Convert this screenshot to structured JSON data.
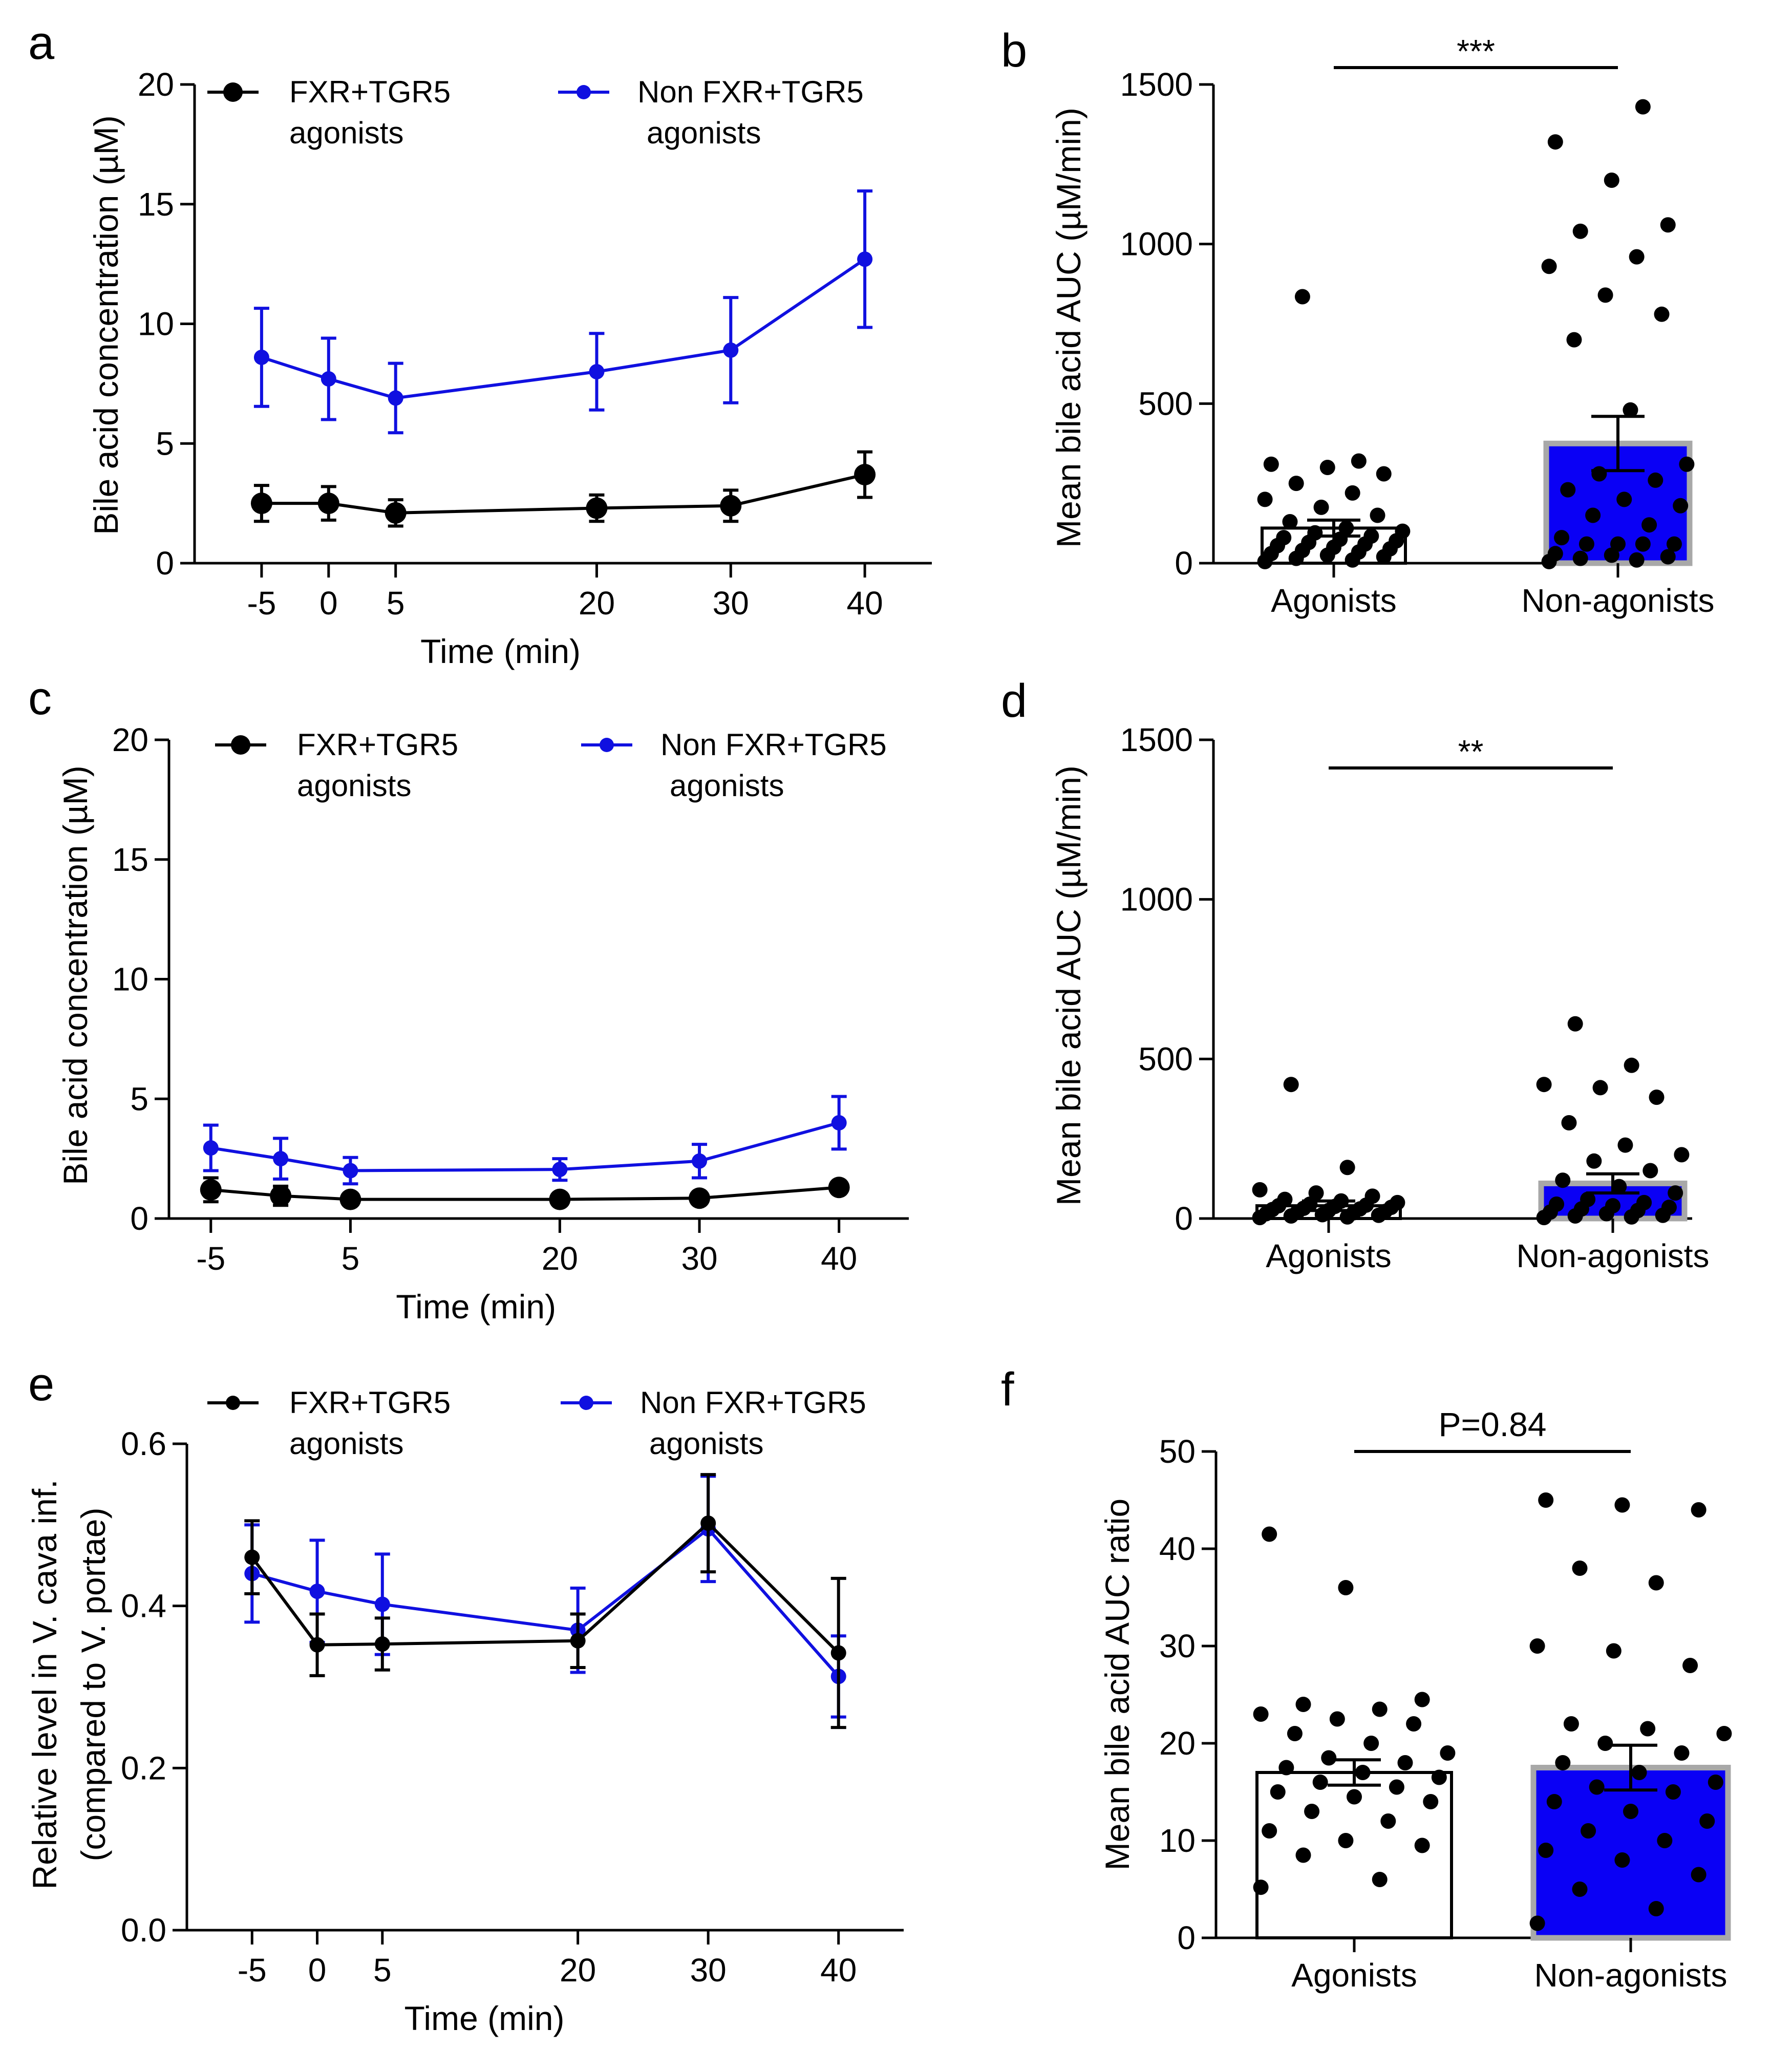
{
  "colors": {
    "agonist": "#000000",
    "non_agonist": "#1010e0",
    "bar_fill_non": "#0a00f5",
    "bar_edge_non": "#a8a8a8"
  },
  "chart_data": [
    {
      "panel": "a",
      "type": "line",
      "xlabel": "Time (min)",
      "ylabel": "Bile acid concentration (µM)",
      "x": [
        -5,
        0,
        5,
        20,
        30,
        40
      ],
      "xtick_labels": [
        "-5",
        "0",
        "5",
        "20",
        "30",
        "40"
      ],
      "ylim": [
        0,
        20
      ],
      "yticks": [
        0,
        5,
        10,
        15,
        20
      ],
      "ytick_labels": [
        "0",
        "5",
        "10",
        "15",
        "20"
      ],
      "legend": [
        {
          "line1": "FXR+TGR5",
          "line2": "agonists"
        },
        {
          "line1": "Non FXR+TGR5",
          "line2": "agonists"
        }
      ],
      "series": [
        {
          "name": "FXR+TGR5 agonists",
          "color": "#000000",
          "values": [
            2.5,
            2.5,
            2.1,
            2.3,
            2.4,
            3.7
          ],
          "errors": [
            0.75,
            0.7,
            0.55,
            0.55,
            0.65,
            0.95
          ]
        },
        {
          "name": "Non FXR+TGR5 agonists",
          "color": "#1010e0",
          "values": [
            8.6,
            7.7,
            6.9,
            8.0,
            8.9,
            12.7
          ],
          "errors": [
            2.05,
            1.7,
            1.45,
            1.6,
            2.2,
            2.85
          ]
        }
      ]
    },
    {
      "panel": "b",
      "type": "bar",
      "ylabel": "Mean bile acid AUC (µM/min)",
      "categories": [
        "Agonists",
        "Non-agonists"
      ],
      "values": [
        110,
        375
      ],
      "errors": [
        25,
        85
      ],
      "ylim": [
        0,
        1500
      ],
      "yticks": [
        0,
        500,
        1000,
        1500
      ],
      "ytick_labels": [
        "0",
        "500",
        "1000",
        "1500"
      ],
      "significance": "***",
      "points": [
        [
          5,
          10,
          15,
          20,
          25,
          30,
          35,
          40,
          45,
          50,
          55,
          60,
          65,
          70,
          75,
          80,
          85,
          95,
          100,
          110,
          130,
          150,
          175,
          200,
          220,
          250,
          280,
          300,
          310,
          320,
          835
        ],
        [
          5,
          10,
          15,
          20,
          25,
          30,
          60,
          60,
          60,
          60,
          80,
          120,
          150,
          180,
          200,
          230,
          260,
          280,
          310,
          480,
          700,
          780,
          840,
          930,
          960,
          1040,
          1060,
          1200,
          1320,
          1430
        ]
      ]
    },
    {
      "panel": "c",
      "type": "line",
      "xlabel": "Time (min)",
      "ylabel": "Bile acid concentration (µM)",
      "x": [
        -5,
        0,
        5,
        20,
        30,
        40
      ],
      "xtick_labels": [
        "-5",
        "5",
        "20",
        "30",
        "40"
      ],
      "xtick_positions": [
        -5,
        5,
        20,
        30,
        40
      ],
      "ylim": [
        0,
        20
      ],
      "yticks": [
        0,
        5,
        10,
        15,
        20
      ],
      "ytick_labels": [
        "0",
        "5",
        "10",
        "15",
        "20"
      ],
      "legend": [
        {
          "line1": "FXR+TGR5",
          "line2": "agonists"
        },
        {
          "line1": "Non FXR+TGR5",
          "line2": "agonists"
        }
      ],
      "series": [
        {
          "name": "FXR+TGR5 agonists",
          "color": "#000000",
          "values": [
            1.2,
            0.95,
            0.8,
            0.8,
            0.85,
            1.3
          ],
          "errors": [
            0.5,
            0.4,
            0.2,
            0.15,
            0.2,
            0.2
          ]
        },
        {
          "name": "Non FXR+TGR5 agonists",
          "color": "#1010e0",
          "values": [
            2.95,
            2.5,
            2.0,
            2.05,
            2.4,
            4.0
          ],
          "errors": [
            0.95,
            0.85,
            0.55,
            0.45,
            0.7,
            1.1
          ]
        }
      ]
    },
    {
      "panel": "d",
      "type": "bar",
      "ylabel": "Mean bile acid AUC (µM/min)",
      "categories": [
        "Agonists",
        "Non-agonists"
      ],
      "values": [
        40,
        110
      ],
      "errors": [
        15,
        30
      ],
      "ylim": [
        0,
        1500
      ],
      "yticks": [
        0,
        500,
        1000,
        1500
      ],
      "ytick_labels": [
        "0",
        "500",
        "1000",
        "1500"
      ],
      "significance": "**",
      "points": [
        [
          3,
          5,
          8,
          10,
          12,
          15,
          18,
          20,
          22,
          25,
          28,
          30,
          32,
          35,
          38,
          40,
          42,
          45,
          50,
          55,
          60,
          70,
          80,
          90,
          160,
          420
        ],
        [
          3,
          5,
          8,
          10,
          15,
          20,
          25,
          30,
          35,
          40,
          45,
          50,
          60,
          80,
          100,
          120,
          150,
          180,
          200,
          230,
          300,
          380,
          410,
          420,
          480,
          610
        ]
      ]
    },
    {
      "panel": "e",
      "type": "line",
      "xlabel": "Time (min)",
      "ylabel": "Relative level in V. cava inf.",
      "ylabel2": "(compared to V. portae)",
      "x": [
        -5,
        0,
        5,
        20,
        30,
        40
      ],
      "xtick_labels": [
        "-5",
        "0",
        "5",
        "20",
        "30",
        "40"
      ],
      "ylim": [
        0,
        0.6
      ],
      "yticks": [
        0,
        0.2,
        0.4,
        0.6
      ],
      "ytick_labels": [
        "0.0",
        "0.2",
        "0.4",
        "0.6"
      ],
      "legend": [
        {
          "line1": "FXR+TGR5",
          "line2": "agonists"
        },
        {
          "line1": "Non FXR+TGR5",
          "line2": "agonists"
        }
      ],
      "series": [
        {
          "name": "FXR+TGR5 agonists",
          "color": "#000000",
          "values": [
            0.46,
            0.352,
            0.353,
            0.357,
            0.502,
            0.342
          ],
          "errors": [
            0.045,
            0.038,
            0.032,
            0.033,
            0.06,
            0.092
          ]
        },
        {
          "name": "Non FXR+TGR5 agonists",
          "color": "#1010e0",
          "values": [
            0.44,
            0.418,
            0.402,
            0.37,
            0.495,
            0.313
          ],
          "errors": [
            0.06,
            0.063,
            0.062,
            0.052,
            0.065,
            0.05
          ]
        }
      ]
    },
    {
      "panel": "f",
      "type": "bar",
      "ylabel": "Mean bile acid AUC ratio",
      "categories": [
        "Agonists",
        "Non-agonists"
      ],
      "values": [
        17,
        17.5
      ],
      "errors": [
        1.3,
        2.3
      ],
      "ylim": [
        0,
        50
      ],
      "yticks": [
        0,
        10,
        20,
        30,
        40,
        50
      ],
      "ytick_labels": [
        "0",
        "10",
        "20",
        "30",
        "40",
        "50"
      ],
      "significance": "P=0.84",
      "points": [
        [
          5.2,
          6,
          8.5,
          9.5,
          10,
          11,
          12,
          13,
          14,
          14.5,
          15,
          15.5,
          16,
          16.5,
          17,
          17.5,
          18,
          18.5,
          19,
          20,
          21,
          22,
          22.5,
          23,
          23.5,
          24,
          24.5,
          36,
          41.5
        ],
        [
          1.5,
          3,
          5,
          6.5,
          8,
          9,
          10,
          11,
          12,
          13,
          14,
          15,
          15.5,
          16,
          17,
          18,
          19,
          20,
          21,
          21.5,
          22,
          28,
          29.5,
          30,
          36.5,
          38,
          44,
          44.5,
          45
        ]
      ]
    }
  ]
}
